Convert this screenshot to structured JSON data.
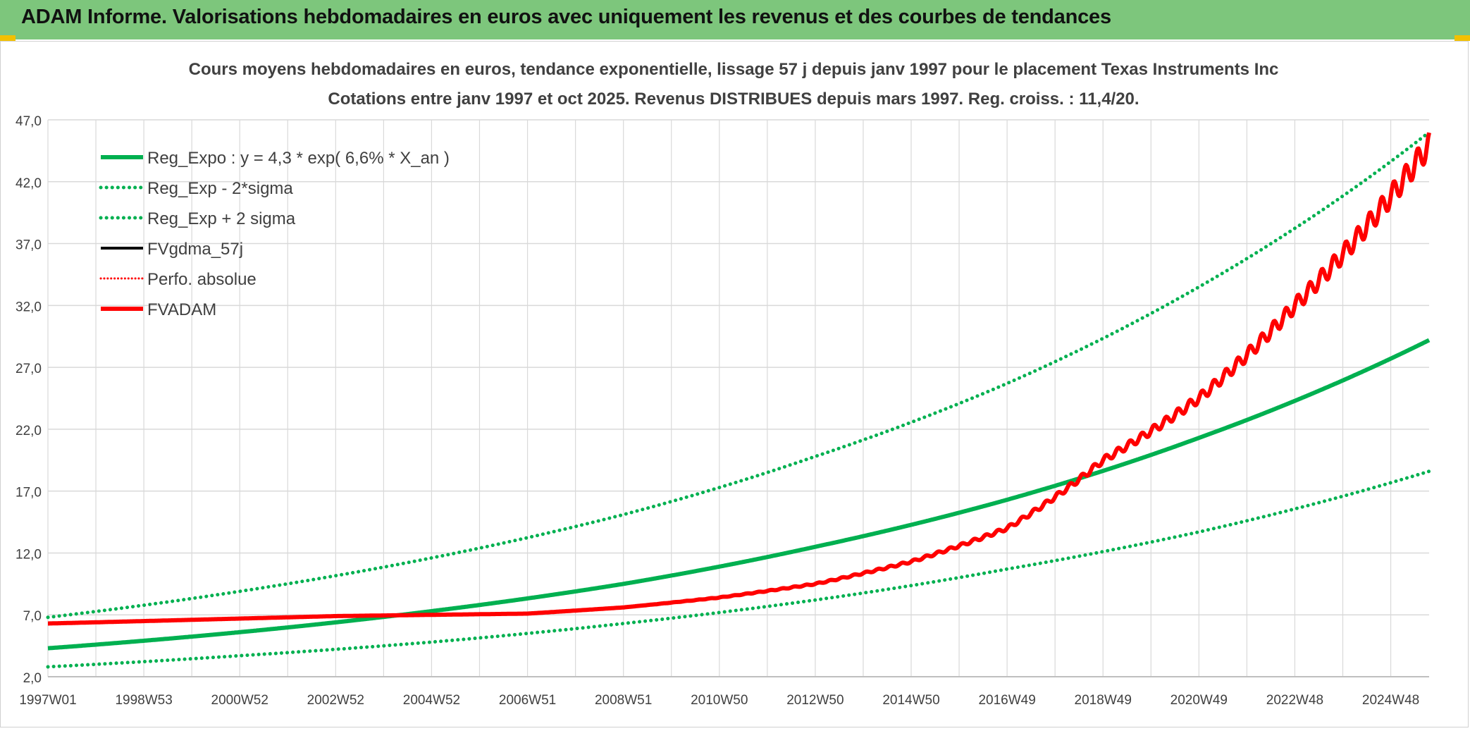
{
  "header": {
    "title": "ADAM Informe. Valorisations hebdomadaires en euros avec uniquement les revenus et des courbes de tendances"
  },
  "colors": {
    "header_bg": "#7dc67c",
    "green": "#00b050",
    "red": "#ff0000",
    "black": "#000000",
    "grid": "#d9d9d9",
    "text": "#404040"
  },
  "chart_data": {
    "type": "line",
    "title": "Cours moyens hebdomadaires en euros, tendance exponentielle, lissage 57 j depuis janv 1997 pour le placement Texas Instruments Inc",
    "subtitle": "Cotations entre janv 1997 et oct 2025. Revenus DISTRIBUES depuis mars 1997. Reg. croiss. : 11,4/20.",
    "xlabel": "",
    "ylabel": "",
    "x_range": [
      1997.0,
      2025.8
    ],
    "ylim": [
      2.0,
      47.0
    ],
    "yticks": [
      "2,0",
      "7,0",
      "12,0",
      "17,0",
      "22,0",
      "27,0",
      "32,0",
      "37,0",
      "42,0",
      "47,0"
    ],
    "xticks": [
      {
        "label": "1997W01",
        "x": 1997.0
      },
      {
        "label": "1998W53",
        "x": 1999.0
      },
      {
        "label": "2000W52",
        "x": 2001.0
      },
      {
        "label": "2002W52",
        "x": 2003.0
      },
      {
        "label": "2004W52",
        "x": 2005.0
      },
      {
        "label": "2006W51",
        "x": 2007.0
      },
      {
        "label": "2008W51",
        "x": 2009.0
      },
      {
        "label": "2010W50",
        "x": 2011.0
      },
      {
        "label": "2012W50",
        "x": 2013.0
      },
      {
        "label": "2014W50",
        "x": 2015.0
      },
      {
        "label": "2016W49",
        "x": 2017.0
      },
      {
        "label": "2018W49",
        "x": 2019.0
      },
      {
        "label": "2020W49",
        "x": 2021.0
      },
      {
        "label": "2022W48",
        "x": 2023.0
      },
      {
        "label": "2024W48",
        "x": 2025.0
      }
    ],
    "grid": true,
    "legend_position": "top-left",
    "series": [
      {
        "name": "Reg_Expo : y = 4,3 * exp( 6,6% *  X_an )",
        "color": "#00b050",
        "style": "solid",
        "width": 6,
        "x": [
          1997.0,
          2001.0,
          2005.0,
          2009.0,
          2013.0,
          2017.0,
          2021.0,
          2025.8
        ],
        "y": [
          4.3,
          5.6,
          7.3,
          9.5,
          12.5,
          16.3,
          21.3,
          29.2
        ]
      },
      {
        "name": "Reg_Exp - 2*sigma",
        "color": "#00b050",
        "style": "dotted",
        "width": 5,
        "x": [
          1997.0,
          2001.0,
          2005.0,
          2009.0,
          2013.0,
          2017.0,
          2021.0,
          2025.8
        ],
        "y": [
          2.8,
          3.7,
          4.8,
          6.3,
          8.2,
          10.7,
          13.7,
          18.6
        ]
      },
      {
        "name": "Reg_Exp + 2 sigma",
        "color": "#00b050",
        "style": "dotted",
        "width": 5,
        "x": [
          1997.0,
          2001.0,
          2005.0,
          2009.0,
          2013.0,
          2017.0,
          2021.0,
          2025.8
        ],
        "y": [
          6.8,
          8.9,
          11.6,
          15.1,
          19.8,
          25.7,
          33.5,
          46.0
        ]
      },
      {
        "name": "FVgdma_57j",
        "color": "#000000",
        "style": "solid",
        "width": 4,
        "x": [
          1997.0,
          2001.0,
          2003.0,
          2005.0,
          2007.0,
          2009.0,
          2011.0,
          2013.0,
          2015.0,
          2017.0,
          2019.0,
          2021.0,
          2023.0,
          2025.8
        ],
        "y": [
          6.3,
          6.7,
          6.9,
          7.0,
          7.1,
          7.6,
          8.4,
          9.5,
          11.3,
          14.0,
          19.5,
          24.5,
          32.0,
          45.0
        ]
      },
      {
        "name": "Perfo. absolue",
        "color": "#ff0000",
        "style": "dotted",
        "width": 3,
        "x": [],
        "y": []
      },
      {
        "name": "FVADAM",
        "color": "#ff0000",
        "style": "solid",
        "width": 6,
        "x": [
          1997.0,
          2001.0,
          2003.0,
          2005.0,
          2007.0,
          2009.0,
          2011.0,
          2013.0,
          2015.0,
          2017.0,
          2019.0,
          2021.0,
          2023.0,
          2025.8
        ],
        "y": [
          6.3,
          6.7,
          6.9,
          7.0,
          7.1,
          7.6,
          8.4,
          9.5,
          11.3,
          14.0,
          19.5,
          24.5,
          32.0,
          45.0
        ]
      }
    ]
  }
}
